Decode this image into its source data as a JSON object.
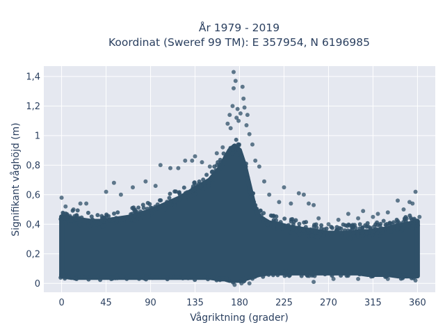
{
  "chart_data": {
    "type": "scatter",
    "title_lines": [
      "År 1979 - 2019",
      "Koordinat (Sweref 99 TM): E 357954, N 6196985"
    ],
    "xlabel": "Vågriktning (grader)",
    "ylabel": "Signifikant våghöjd (m)",
    "xlim": [
      -18,
      378
    ],
    "ylim": [
      -0.06,
      1.47
    ],
    "x_ticks": [
      0,
      45,
      90,
      135,
      180,
      225,
      270,
      315,
      360
    ],
    "x_tick_labels": [
      "0",
      "45",
      "90",
      "135",
      "180",
      "225",
      "270",
      "315",
      "360"
    ],
    "y_ticks": [
      0,
      0.2,
      0.4,
      0.6,
      0.8,
      1,
      1.2,
      1.4
    ],
    "y_tick_labels": [
      "0",
      "0,2",
      "0,4",
      "0,6",
      "0,8",
      "1",
      "1,2",
      "1,4"
    ],
    "grid": true,
    "marker_color": "#2f5068",
    "plot_background": "#e5e8f0",
    "envelope": {
      "x": [
        0,
        10,
        20,
        30,
        40,
        50,
        60,
        70,
        80,
        90,
        100,
        110,
        120,
        130,
        140,
        150,
        160,
        165,
        170,
        175,
        180,
        185,
        190,
        195,
        200,
        210,
        220,
        230,
        240,
        250,
        260,
        270,
        280,
        290,
        300,
        310,
        320,
        330,
        340,
        350,
        360
      ],
      "dense_top": [
        0.45,
        0.44,
        0.43,
        0.42,
        0.42,
        0.43,
        0.44,
        0.45,
        0.47,
        0.49,
        0.52,
        0.55,
        0.58,
        0.62,
        0.66,
        0.7,
        0.78,
        0.84,
        0.9,
        0.93,
        0.9,
        0.8,
        0.66,
        0.52,
        0.45,
        0.41,
        0.4,
        0.38,
        0.37,
        0.36,
        0.35,
        0.34,
        0.34,
        0.34,
        0.35,
        0.35,
        0.36,
        0.37,
        0.39,
        0.4,
        0.42
      ],
      "dense_bottom": [
        0.05,
        0.04,
        0.04,
        0.04,
        0.04,
        0.04,
        0.04,
        0.04,
        0.04,
        0.04,
        0.04,
        0.04,
        0.04,
        0.04,
        0.04,
        0.04,
        0.03,
        0.03,
        0.02,
        0.02,
        0.02,
        0.03,
        0.04,
        0.05,
        0.06,
        0.07,
        0.07,
        0.07,
        0.07,
        0.07,
        0.07,
        0.07,
        0.07,
        0.07,
        0.07,
        0.06,
        0.06,
        0.06,
        0.05,
        0.05,
        0.05
      ]
    },
    "outliers": [
      {
        "x": 0,
        "y": 0.58
      },
      {
        "x": 4,
        "y": 0.52
      },
      {
        "x": 12,
        "y": 0.5
      },
      {
        "x": 19,
        "y": 0.54
      },
      {
        "x": 25,
        "y": 0.54
      },
      {
        "x": 45,
        "y": 0.62
      },
      {
        "x": 53,
        "y": 0.68
      },
      {
        "x": 60,
        "y": 0.6
      },
      {
        "x": 72,
        "y": 0.65
      },
      {
        "x": 85,
        "y": 0.69
      },
      {
        "x": 95,
        "y": 0.66
      },
      {
        "x": 100,
        "y": 0.8
      },
      {
        "x": 110,
        "y": 0.78
      },
      {
        "x": 118,
        "y": 0.78
      },
      {
        "x": 125,
        "y": 0.83
      },
      {
        "x": 132,
        "y": 0.83
      },
      {
        "x": 135,
        "y": 0.86
      },
      {
        "x": 142,
        "y": 0.82
      },
      {
        "x": 150,
        "y": 0.79
      },
      {
        "x": 157,
        "y": 0.88
      },
      {
        "x": 163,
        "y": 0.92
      },
      {
        "x": 168,
        "y": 1.08
      },
      {
        "x": 170,
        "y": 1.14
      },
      {
        "x": 171,
        "y": 1.05
      },
      {
        "x": 173,
        "y": 1.2
      },
      {
        "x": 174,
        "y": 1.32
      },
      {
        "x": 174,
        "y": 1.43
      },
      {
        "x": 176,
        "y": 1.37
      },
      {
        "x": 177,
        "y": 1.12
      },
      {
        "x": 178,
        "y": 1.18
      },
      {
        "x": 179,
        "y": 1.1
      },
      {
        "x": 181,
        "y": 1.15
      },
      {
        "x": 183,
        "y": 1.33
      },
      {
        "x": 184,
        "y": 1.25
      },
      {
        "x": 185,
        "y": 1.19
      },
      {
        "x": 187,
        "y": 1.07
      },
      {
        "x": 188,
        "y": 1.14
      },
      {
        "x": 190,
        "y": 1.01
      },
      {
        "x": 193,
        "y": 0.94
      },
      {
        "x": 196,
        "y": 0.83
      },
      {
        "x": 200,
        "y": 0.79
      },
      {
        "x": 205,
        "y": 0.69
      },
      {
        "x": 210,
        "y": 0.6
      },
      {
        "x": 220,
        "y": 0.55
      },
      {
        "x": 225,
        "y": 0.65
      },
      {
        "x": 232,
        "y": 0.54
      },
      {
        "x": 240,
        "y": 0.61
      },
      {
        "x": 245,
        "y": 0.6
      },
      {
        "x": 250,
        "y": 0.54
      },
      {
        "x": 255,
        "y": 0.53
      },
      {
        "x": 260,
        "y": 0.44
      },
      {
        "x": 270,
        "y": 0.4
      },
      {
        "x": 280,
        "y": 0.43
      },
      {
        "x": 290,
        "y": 0.47
      },
      {
        "x": 300,
        "y": 0.44
      },
      {
        "x": 305,
        "y": 0.49
      },
      {
        "x": 315,
        "y": 0.45
      },
      {
        "x": 320,
        "y": 0.47
      },
      {
        "x": 330,
        "y": 0.48
      },
      {
        "x": 340,
        "y": 0.56
      },
      {
        "x": 346,
        "y": 0.5
      },
      {
        "x": 352,
        "y": 0.55
      },
      {
        "x": 355,
        "y": 0.54
      },
      {
        "x": 358,
        "y": 0.62
      },
      {
        "x": 362,
        "y": 0.45
      },
      {
        "x": 175,
        "y": -0.01
      },
      {
        "x": 182,
        "y": 0
      },
      {
        "x": 190,
        "y": 0
      },
      {
        "x": 255,
        "y": 0.01
      },
      {
        "x": 275,
        "y": 0.03
      },
      {
        "x": 300,
        "y": 0.03
      },
      {
        "x": 330,
        "y": 0.03
      },
      {
        "x": 358,
        "y": 0.02
      }
    ]
  }
}
